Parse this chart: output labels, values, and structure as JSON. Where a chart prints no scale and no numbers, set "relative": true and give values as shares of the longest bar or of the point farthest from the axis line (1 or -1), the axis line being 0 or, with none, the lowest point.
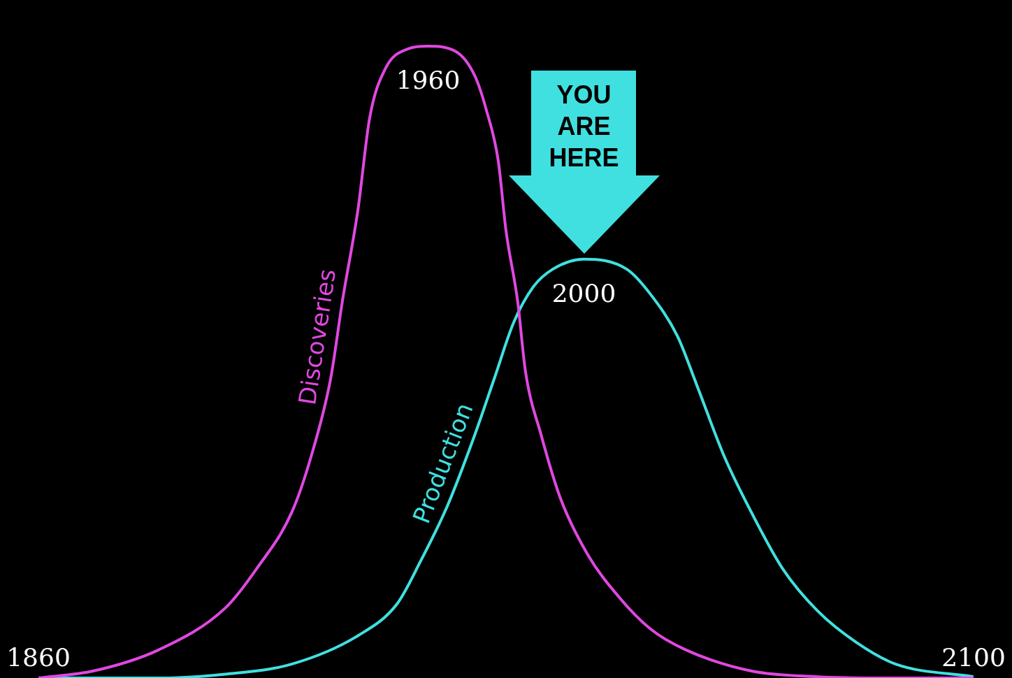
{
  "chart_data": {
    "type": "line",
    "relative": true,
    "xlim": [
      1860,
      2100
    ],
    "xticks": [
      1860,
      2100
    ],
    "grid": false,
    "legend": false,
    "marker": "none",
    "line_style": "solid",
    "series": [
      {
        "name": "Discoveries",
        "color": "#e048e0",
        "x": [
          1860,
          1874,
          1891,
          1908,
          1916,
          1925,
          1930,
          1935,
          1938,
          1942,
          1945,
          1949,
          1955,
          1960,
          1967,
          1972,
          1975,
          1978,
          1980,
          1983,
          1985,
          1989,
          1994,
          2001,
          2009,
          2017,
          2026,
          2043,
          2060,
          2076,
          2100
        ],
        "values": [
          0,
          0.011,
          0.045,
          0.111,
          0.173,
          0.262,
          0.351,
          0.474,
          0.596,
          0.741,
          0.886,
          0.964,
          0.996,
          1,
          0.992,
          0.953,
          0.898,
          0.819,
          0.708,
          0.596,
          0.485,
          0.385,
          0.284,
          0.195,
          0.128,
          0.078,
          0.045,
          0.011,
          0.002,
          0,
          0
        ]
      },
      {
        "name": "Production",
        "color": "#40e0e0",
        "x": [
          1860,
          1891,
          1908,
          1925,
          1942,
          1952,
          1958,
          1965,
          1972,
          1977,
          1982,
          1987,
          1992,
          2000,
          2011,
          2017,
          2024,
          2029,
          2036,
          2043,
          2051,
          2060,
          2070,
          2080,
          2100
        ],
        "values": [
          0,
          0,
          0.006,
          0.022,
          0.067,
          0.117,
          0.184,
          0.273,
          0.385,
          0.474,
          0.563,
          0.619,
          0.647,
          0.663,
          0.647,
          0.608,
          0.541,
          0.463,
          0.351,
          0.262,
          0.173,
          0.106,
          0.056,
          0.022,
          0.002
        ]
      }
    ],
    "annotations": [
      {
        "text": "1960",
        "x": 1960,
        "y": 1
      },
      {
        "text": "2000",
        "x": 2000,
        "y": 0.663
      },
      "YOU ARE HERE"
    ]
  }
}
